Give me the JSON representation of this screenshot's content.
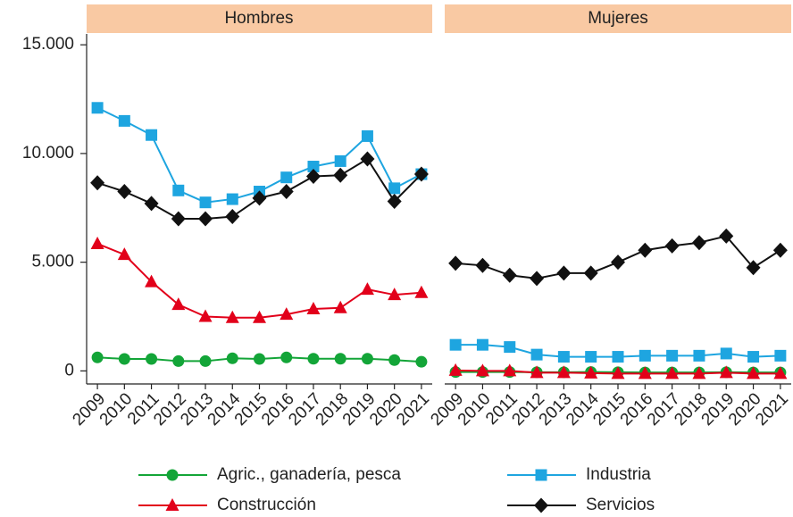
{
  "chart_data": [
    {
      "type": "line",
      "title": "Hombres",
      "x": [
        2009,
        2010,
        2011,
        2012,
        2013,
        2014,
        2015,
        2016,
        2017,
        2018,
        2019,
        2020,
        2021
      ],
      "xlim": [
        2008.6,
        2021.4
      ],
      "xticks": [
        2009,
        2010,
        2011,
        2012,
        2013,
        2014,
        2015,
        2016,
        2017,
        2018,
        2019,
        2020,
        2021
      ],
      "ylim": [
        -600,
        15500
      ],
      "yticks": [
        0,
        {
          "value": 5000,
          "label": "5.000"
        },
        {
          "value": 10000,
          "label": "10.000"
        },
        {
          "value": 15000,
          "label": "15.000"
        }
      ],
      "series": [
        {
          "name": "Agric., ganadería, pesca",
          "color": "#13a538",
          "marker": "circle",
          "values": [
            620,
            550,
            550,
            450,
            450,
            580,
            550,
            620,
            560,
            560,
            560,
            500,
            420
          ]
        },
        {
          "name": "Industria",
          "color": "#1ea5e0",
          "marker": "square",
          "values": [
            12100,
            11500,
            10850,
            8300,
            7750,
            7900,
            8250,
            8900,
            9400,
            9650,
            10800,
            8400,
            9050
          ]
        },
        {
          "name": "Construcción",
          "color": "#e2001a",
          "marker": "triangle",
          "values": [
            5850,
            5350,
            4100,
            3050,
            2500,
            2450,
            2450,
            2600,
            2850,
            2900,
            3750,
            3500,
            3600
          ]
        },
        {
          "name": "Servicios",
          "color": "#111111",
          "marker": "diamond",
          "values": [
            8650,
            8250,
            7700,
            7000,
            7000,
            7100,
            7950,
            8250,
            8950,
            9000,
            9750,
            7800,
            9050
          ]
        }
      ]
    },
    {
      "type": "line",
      "title": "Mujeres",
      "x": [
        2009,
        2010,
        2011,
        2012,
        2013,
        2014,
        2015,
        2016,
        2017,
        2018,
        2019,
        2020,
        2021
      ],
      "xlim": [
        2008.6,
        2021.4
      ],
      "xticks": [
        2009,
        2010,
        2011,
        2012,
        2013,
        2014,
        2015,
        2016,
        2017,
        2018,
        2019,
        2020,
        2021
      ],
      "ylim": [
        -600,
        15500
      ],
      "series": [
        {
          "values": [
            -50,
            -50,
            -50,
            -60,
            -60,
            -50,
            -60,
            -70,
            -70,
            -70,
            -60,
            -70,
            -70
          ]
        },
        {
          "values": [
            1200,
            1200,
            1100,
            750,
            650,
            650,
            650,
            700,
            700,
            700,
            800,
            650,
            700
          ]
        },
        {
          "values": [
            20,
            0,
            0,
            -80,
            -80,
            -100,
            -120,
            -120,
            -120,
            -120,
            -80,
            -120,
            -120
          ]
        },
        {
          "values": [
            4950,
            4850,
            4400,
            4250,
            4500,
            4500,
            5000,
            5550,
            5750,
            5900,
            6200,
            4750,
            5550
          ]
        }
      ]
    }
  ]
}
